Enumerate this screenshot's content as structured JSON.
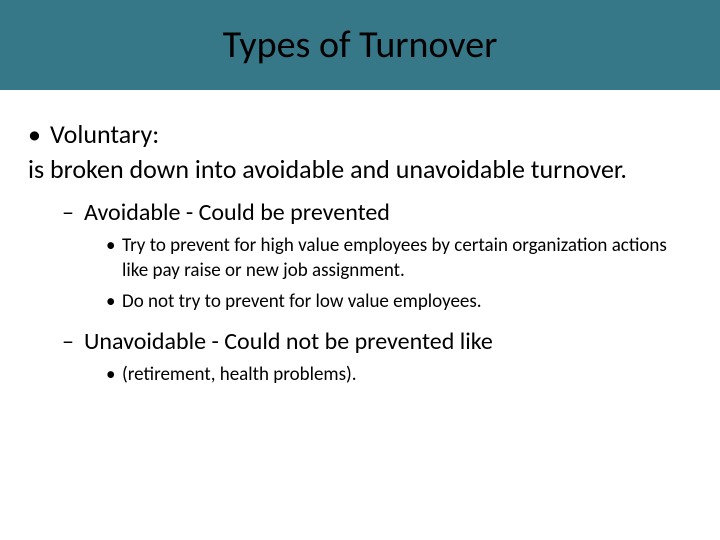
{
  "slide": {
    "title": "Types of Turnover",
    "background_color": "#ffffff",
    "title_bar_color": "#367788",
    "title_color": "#000000",
    "title_fontsize": 38,
    "body_fontsize": 26,
    "l2_fontsize": 24,
    "l3_fontsize": 19,
    "bullets": {
      "l1_label": "Voluntary:",
      "l1_desc": "is broken down into avoidable and unavoidable turnover.",
      "l2": [
        {
          "text": "Avoidable - Could be prevented",
          "sub": [
            "Try to prevent for high value employees by certain organization actions like pay raise or new job assignment.",
            "Do not try to prevent for low value employees."
          ]
        },
        {
          "text": "Unavoidable - Could not be prevented like",
          "sub": [
            " (retirement,  health problems)."
          ]
        }
      ]
    }
  }
}
